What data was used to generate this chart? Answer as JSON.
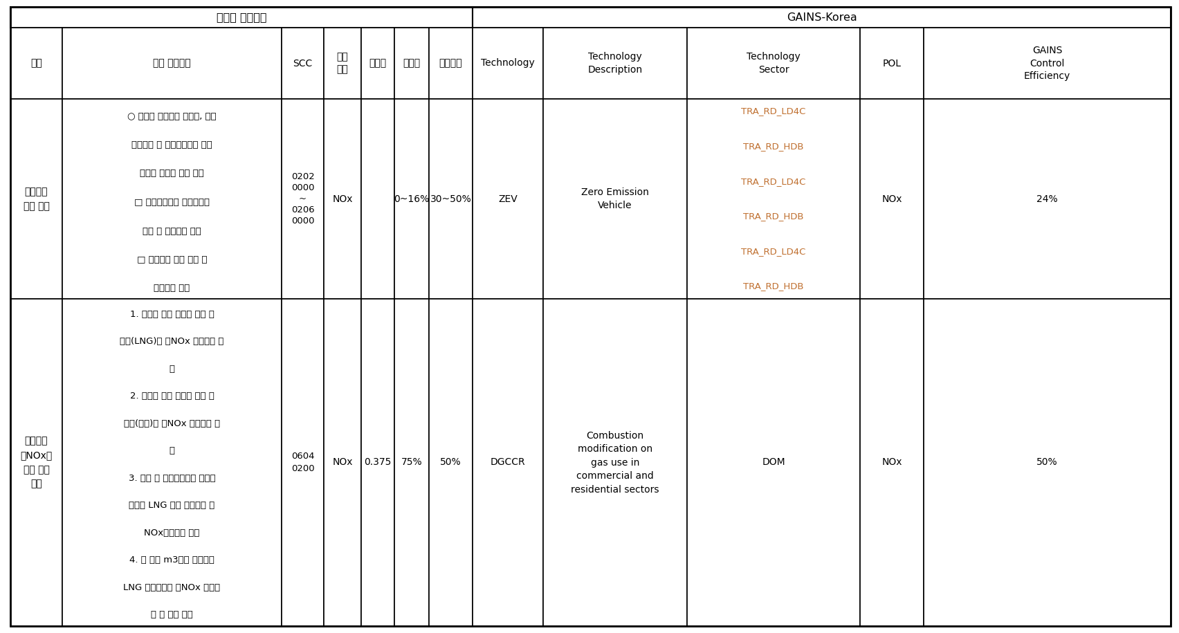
{
  "cols": [
    15,
    90,
    407,
    468,
    522,
    570,
    620,
    683,
    785,
    993,
    1243,
    1335,
    1692
  ],
  "rows": [
    10,
    40,
    143,
    432,
    905
  ],
  "header1_left": "수도권 저감정책",
  "header1_right": "GAINS-Korea",
  "col_headers": [
    "정책",
    "정책 요약정보",
    "SCC",
    "오염\n물질",
    "삭감율",
    "보급율",
    "방지효율",
    "Technology",
    "Technology\nDescription",
    "Technology\nSector",
    "POL",
    "GAINS\nControl\nEfficiency"
  ],
  "row1_policy": "친환경자\n동차 보급",
  "row1_summary_lines": [
    "○ 자동차 제작사에 전기차, 하이",
    "브리드차 등 대기오염물질 무배",
    "출차량 중심의 판매 유도",
    "□ 저공해자동차 의무구매율",
    "상향 및 대상기관 확대",
    "□ 친환경차 보급 지원 및",
    "인센티브 확대"
  ],
  "row1_scc": "0202\n0000\n~\n0206\n0000",
  "row1_pollutant": "NOx",
  "row1_reduction": "",
  "row1_subsidy": "0~16%",
  "row1_prevention": "30~50%",
  "row1_technology": "ZEV",
  "row1_tech_desc": "Zero Emission\nVehicle",
  "row1_tech_sector": [
    "TRA_RD_LD4C",
    "TRA_RD_HDB",
    "TRA_RD_LD4C",
    "TRA_RD_HDB",
    "TRA_RD_LD4C",
    "TRA_RD_HDB"
  ],
  "row1_pol": "NOx",
  "row1_efficiency": "24%",
  "row2_policy": "면오염원\n저NOx보\n일러 설치\n확대",
  "row2_summary_lines": [
    "1. 수도권 지역 주택의 일반 보",
    "일러(LNG)를 저NOx 보일러로 교",
    "체",
    "2. 수도권 지역 주택의 일반 보",
    "일러(유류)를 저NOx 보일러로 교",
    "체",
    "3. 상업 및 공공기관시설 부문의",
    "중소형 LNG 가스 보일러를 저",
    "NOx보일러로 교체",
    "4. 연 백만 m3이상 사용하는",
    "LNG 가스보일러 저NOx 보일러",
    "화 및 관리 강화"
  ],
  "row2_scc": "0604\n0200",
  "row2_pollutant": "NOx",
  "row2_reduction": "0.375",
  "row2_subsidy": "75%",
  "row2_prevention": "50%",
  "row2_technology": "DGCCR",
  "row2_tech_desc": "Combustion\nmodification on\ngas use in\ncommercial and\nresidential sectors",
  "row2_tech_sector": [
    "DOM"
  ],
  "row2_pol": "NOx",
  "row2_efficiency": "50%",
  "tech_sector_color": "#c07030",
  "border_color": "#000000",
  "bg_color": "#ffffff",
  "text_color": "#000000"
}
